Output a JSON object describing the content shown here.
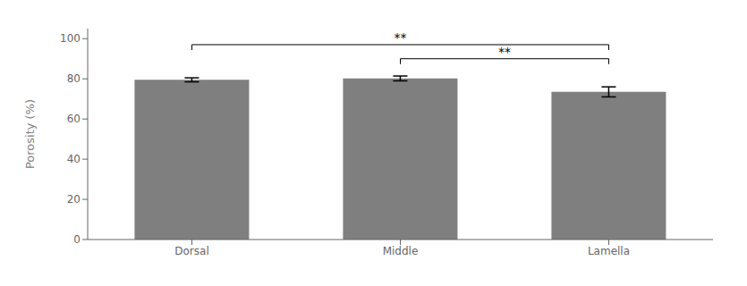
{
  "chart_data": {
    "type": "bar",
    "categories": [
      "Dorsal",
      "Middle",
      "Lamella"
    ],
    "values": [
      79.5,
      80.2,
      73.5
    ],
    "errors": [
      1.0,
      1.2,
      2.5
    ],
    "color": "#7f7f7f",
    "ylabel": "Porosity (%)",
    "ylim": [
      0,
      105
    ],
    "yticks": [
      0,
      20,
      40,
      60,
      80,
      100
    ],
    "grid": false,
    "annotations": [
      {
        "x1": "Dorsal",
        "x2": "Lamella",
        "y": 97,
        "text": "**"
      },
      {
        "x1": "Middle",
        "x2": "Lamella",
        "y": 90,
        "text": "**"
      }
    ]
  }
}
